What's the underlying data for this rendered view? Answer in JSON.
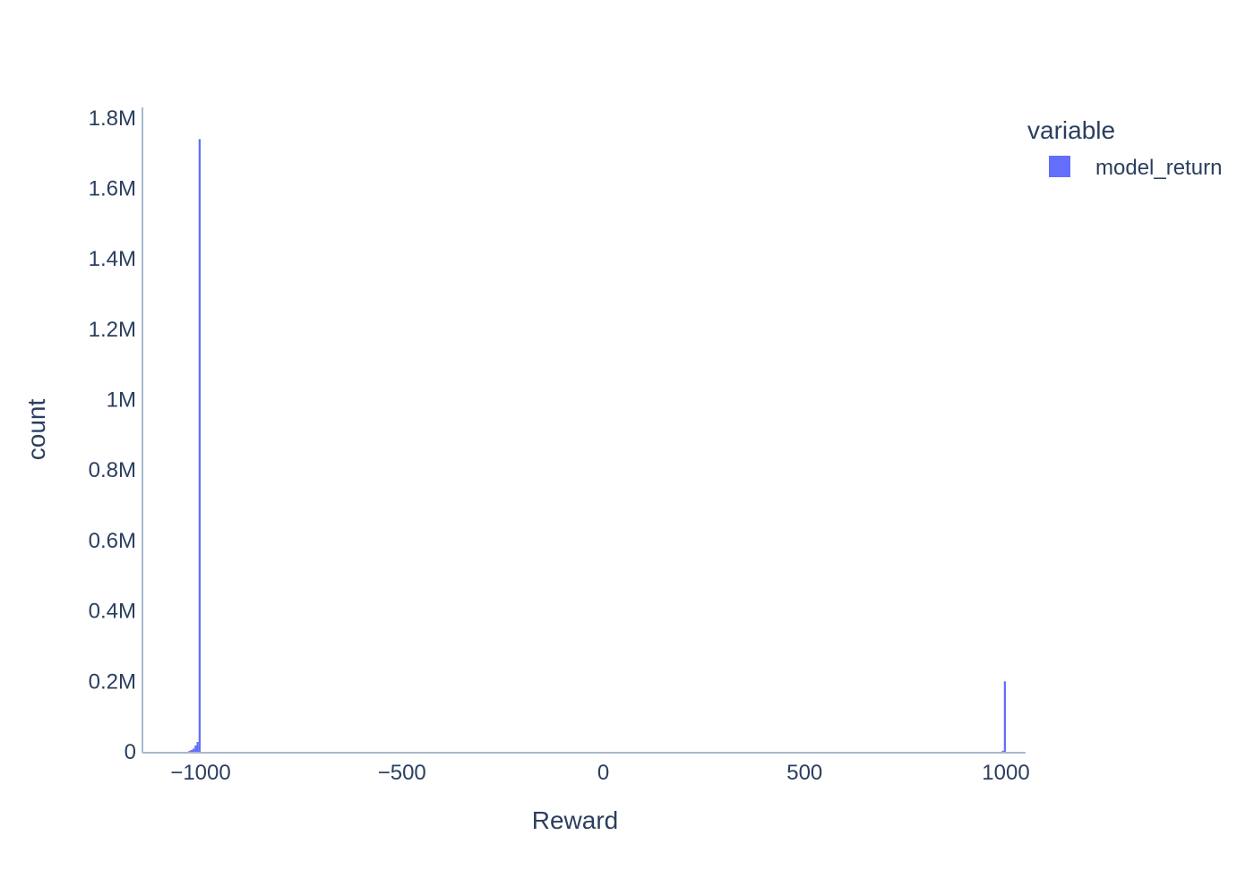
{
  "chart_data": {
    "type": "bar",
    "subtype": "histogram",
    "xlabel": "Reward",
    "ylabel": "count",
    "xlim": [
      -1145,
      1145
    ],
    "ylim": [
      0,
      1830000
    ],
    "x_ticks": [
      {
        "value": -1000,
        "label": "−1000"
      },
      {
        "value": -500,
        "label": "−500"
      },
      {
        "value": 0,
        "label": "0"
      },
      {
        "value": 500,
        "label": "500"
      },
      {
        "value": 1000,
        "label": "1000"
      }
    ],
    "y_ticks": [
      {
        "value": 0,
        "label": "0"
      },
      {
        "value": 200000,
        "label": "0.2M"
      },
      {
        "value": 400000,
        "label": "0.4M"
      },
      {
        "value": 600000,
        "label": "0.6M"
      },
      {
        "value": 800000,
        "label": "0.8M"
      },
      {
        "value": 1000000,
        "label": "1M"
      },
      {
        "value": 1200000,
        "label": "1.2M"
      },
      {
        "value": 1400000,
        "label": "1.4M"
      },
      {
        "value": 1600000,
        "label": "1.6M"
      },
      {
        "value": 1800000,
        "label": "1.8M"
      }
    ],
    "grid": false,
    "legend": {
      "title": "variable",
      "position": "top-right"
    },
    "bin_width": 5,
    "series": [
      {
        "name": "model_return",
        "color": "#636efa",
        "bins": [
          {
            "x0": -1030,
            "x1": -1025,
            "count": 3000
          },
          {
            "x0": -1025,
            "x1": -1020,
            "count": 5000
          },
          {
            "x0": -1020,
            "x1": -1015,
            "count": 9000
          },
          {
            "x0": -1015,
            "x1": -1010,
            "count": 18000
          },
          {
            "x0": -1010,
            "x1": -1005,
            "count": 28000
          },
          {
            "x0": -1005,
            "x1": -1000,
            "count": 1740000
          },
          {
            "x0": 990,
            "x1": 995,
            "count": 3000
          },
          {
            "x0": 995,
            "x1": 1000,
            "count": 200000
          }
        ]
      }
    ]
  }
}
